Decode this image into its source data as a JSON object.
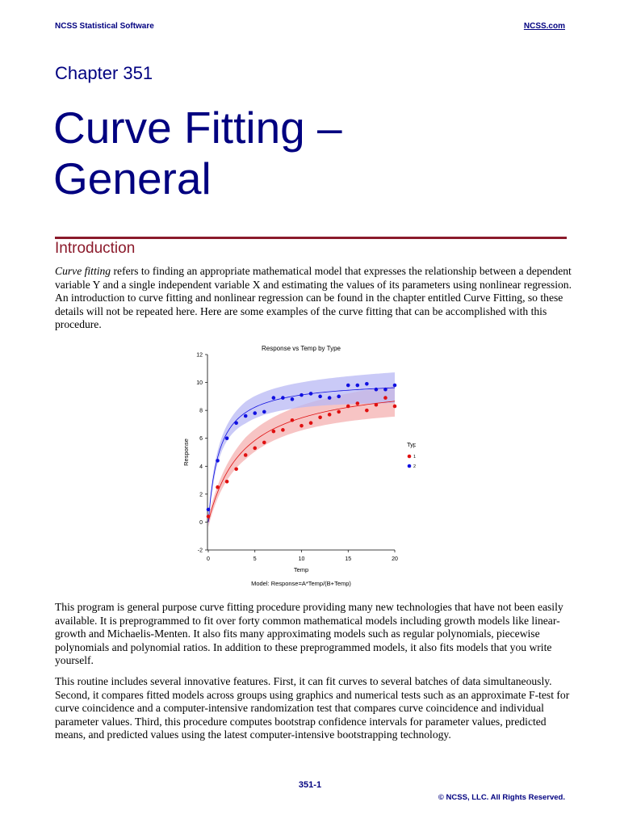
{
  "header": {
    "left": "NCSS Statistical Software",
    "right": "NCSS.com"
  },
  "chapter": "Chapter 351",
  "title_line1": "Curve Fitting –",
  "title_line2": "General",
  "section": "Introduction",
  "intro": {
    "lead": "Curve fitting",
    "rest": " refers to finding an appropriate mathematical model that expresses the relationship between a dependent variable Y and a single independent variable X and estimating the values of its parameters using nonlinear regression. An introduction to curve fitting and nonlinear regression can be found in the chapter entitled Curve Fitting, so these details will not be repeated here. Here are some examples of the curve fitting that can be accomplished with this procedure."
  },
  "para2": "This program is general purpose curve fitting procedure providing many new technologies that have not been easily available. It is preprogrammed to fit over forty common mathematical models including growth models like linear-growth and Michaelis-Menten. It also fits many approximating models such as regular polynomials, piecewise polynomials and polynomial ratios. In addition to these preprogrammed models, it also fits models that you write yourself.",
  "para3": "This routine includes several innovative features. First, it can fit curves to several batches of data simultaneously. Second, it compares fitted models across groups using graphics and numerical tests such as an approximate F-test for curve coincidence and a computer-intensive randomization test that compares curve coincidence and individual parameter values. Third, this procedure computes bootstrap confidence intervals for parameter values, predicted means, and predicted values using the latest computer-intensive bootstrapping technology.",
  "chart_data": {
    "type": "scatter",
    "title": "Response vs Temp by Type",
    "xlabel": "Temp",
    "ylabel": "Response",
    "caption": "Model: Response=A*Temp/(B+Temp)",
    "xlim": [
      0,
      20
    ],
    "ylim": [
      -2,
      12
    ],
    "xticks": [
      0,
      5,
      10,
      15,
      20
    ],
    "yticks": [
      -2,
      0,
      2,
      4,
      6,
      8,
      10,
      12
    ],
    "legend": {
      "title": "Type",
      "placement": "right"
    },
    "grid": false,
    "series": [
      {
        "name": "1",
        "color": "#e01010",
        "band_color": "#f4b0b0",
        "fit": {
          "A": 10.3,
          "B": 3.8
        },
        "points": [
          [
            0,
            0.4
          ],
          [
            1,
            2.5
          ],
          [
            2,
            2.9
          ],
          [
            3,
            3.8
          ],
          [
            4,
            4.8
          ],
          [
            5,
            5.3
          ],
          [
            6,
            5.7
          ],
          [
            7,
            6.5
          ],
          [
            8,
            6.6
          ],
          [
            9,
            7.3
          ],
          [
            10,
            6.9
          ],
          [
            11,
            7.1
          ],
          [
            12,
            7.5
          ],
          [
            13,
            7.7
          ],
          [
            14,
            7.9
          ],
          [
            15,
            8.3
          ],
          [
            16,
            8.5
          ],
          [
            17,
            8.0
          ],
          [
            18,
            8.4
          ],
          [
            19,
            8.9
          ],
          [
            20,
            8.3
          ]
        ]
      },
      {
        "name": "2",
        "color": "#1010e0",
        "band_color": "#b8b8f4",
        "fit": {
          "A": 10.2,
          "B": 1.2
        },
        "points": [
          [
            0,
            0.9
          ],
          [
            1,
            4.4
          ],
          [
            2,
            6.0
          ],
          [
            3,
            7.1
          ],
          [
            4,
            7.6
          ],
          [
            5,
            7.8
          ],
          [
            6,
            7.9
          ],
          [
            7,
            8.9
          ],
          [
            8,
            8.9
          ],
          [
            9,
            8.8
          ],
          [
            10,
            9.1
          ],
          [
            11,
            9.2
          ],
          [
            12,
            9.0
          ],
          [
            13,
            8.9
          ],
          [
            14,
            9.0
          ],
          [
            15,
            9.8
          ],
          [
            16,
            9.8
          ],
          [
            17,
            9.9
          ],
          [
            18,
            9.5
          ],
          [
            19,
            9.5
          ],
          [
            20,
            9.8
          ]
        ]
      }
    ]
  },
  "footer": {
    "page": "351-1",
    "copyright": "© NCSS, LLC. All Rights Reserved."
  }
}
